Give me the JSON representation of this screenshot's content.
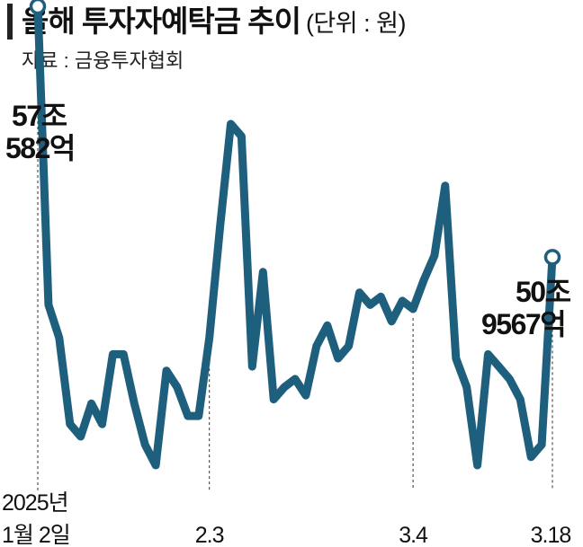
{
  "header": {
    "title": "올해 투자자예탁금 추이",
    "unit": "(단위 : 원)",
    "source": "자료 : 금융투자협회"
  },
  "colors": {
    "line": "#1f5f7e",
    "text": "#111111",
    "marker_fill": "#ffffff"
  },
  "chart_data": {
    "type": "line",
    "title": "올해 투자자예탁금 추이",
    "unit": "원",
    "x_tick_labels": [
      "2025년 1월 2일",
      "2.3",
      "3.4",
      "3.18"
    ],
    "series": [
      {
        "values": [
          57.06,
          49.8,
          49.0,
          46.9,
          46.6,
          47.4,
          46.9,
          48.6,
          48.6,
          47.4,
          46.4,
          45.9,
          48.2,
          47.8,
          47.1,
          47.1,
          49.0,
          51.7,
          54.2,
          53.9,
          48.3,
          50.6,
          47.5,
          47.8,
          48.0,
          47.6,
          48.8,
          49.3,
          48.5,
          48.8,
          50.1,
          49.8,
          50.0,
          49.4,
          49.9,
          49.7,
          50.4,
          51.0,
          52.7,
          48.5,
          47.8,
          45.9,
          48.6,
          48.3,
          48.0,
          47.5,
          46.1,
          46.4,
          50.96
        ]
      }
    ],
    "annotations": [
      {
        "line1": "57조",
        "line2": "582억"
      },
      {
        "line1": "50조",
        "line2": "9567억"
      }
    ],
    "grid": false,
    "legend": "none"
  }
}
